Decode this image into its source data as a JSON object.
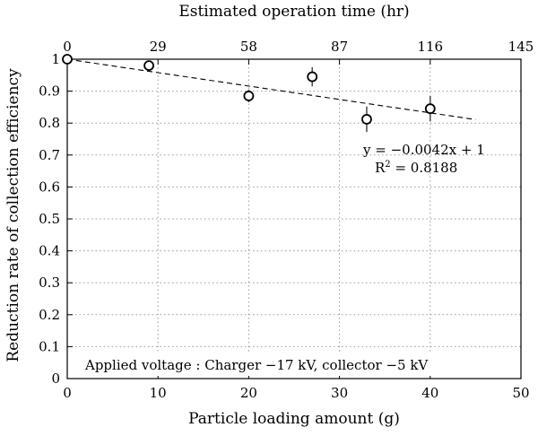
{
  "chart_data": {
    "type": "scatter",
    "title": "",
    "xlabel": "Particle loading amount (g)",
    "ylabel": "Reduction rate of collection efficiency",
    "x2label": "Estimated operation time (hr)",
    "xlim": [
      0,
      50
    ],
    "ylim": [
      0,
      1
    ],
    "x_ticks": [
      0,
      10,
      20,
      30,
      40,
      50
    ],
    "y_ticks": [
      0,
      0.1,
      0.2,
      0.3,
      0.4,
      0.5,
      0.6,
      0.7,
      0.8,
      0.9,
      1
    ],
    "y_tick_labels": [
      "0",
      "0.1",
      "0.2",
      "0.3",
      "0.4",
      "0.5",
      "0.6",
      "0.7",
      "0.8",
      "0.9",
      "1"
    ],
    "x2_ticks": [
      0,
      29,
      58,
      87,
      116,
      145
    ],
    "x2_range": [
      0,
      145
    ],
    "grid": "dotted",
    "series": [
      {
        "x": [
          0,
          9,
          20,
          27,
          33,
          40
        ],
        "y": [
          1.0,
          0.98,
          0.885,
          0.945,
          0.812,
          0.845
        ],
        "yerr": [
          0,
          0.01,
          0.02,
          0.03,
          0.04,
          0.04
        ],
        "marker": "open-circle"
      }
    ],
    "fit": {
      "slope": -0.0042,
      "intercept": 1,
      "x_range": [
        0,
        45
      ],
      "style": "dashed",
      "equation": "y = −0.0042x + 1",
      "r2_prefix": "R",
      "r2_sup": "2",
      "r2_value": " = 0.8188"
    },
    "annotation": "Applied voltage : Charger −17 kV, collector −5 kV"
  }
}
